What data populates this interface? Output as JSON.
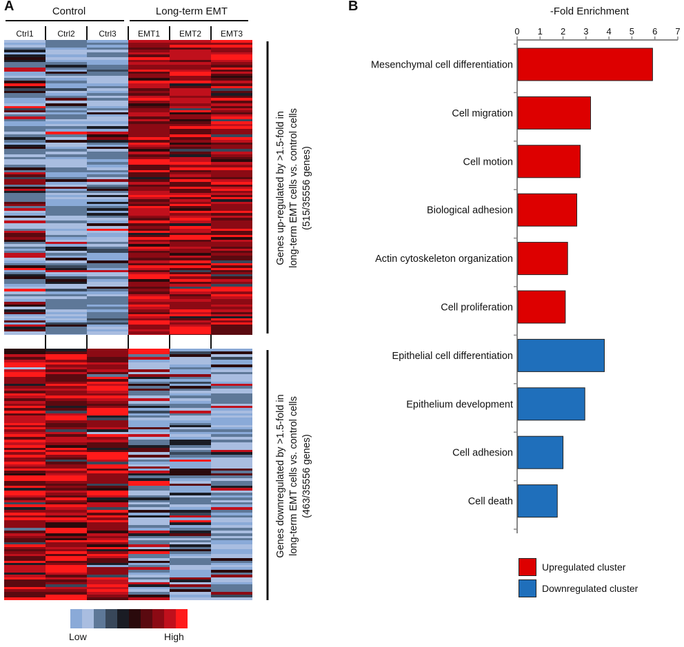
{
  "panel_a": {
    "letter": "A",
    "groups": [
      "Control",
      "Long-term EMT"
    ],
    "columns": [
      "Ctrl1",
      "Ctrl2",
      "Ctrl3",
      "EMT1",
      "EMT2",
      "EMT3"
    ],
    "upregulated_label": [
      "Genes up-regulated by >1.5-fold in",
      "long-term EMT cells vs. control cells",
      "(515/35556 genes)"
    ],
    "downregulated_label": [
      "Genes downregulated by >1.5-fold in",
      "long-term EMT cells vs. control cells",
      "(463/35556 genes)"
    ],
    "scale": {
      "low": "Low",
      "high": "High",
      "colors": [
        "#8aaad8",
        "#a9bde0",
        "#5e7898",
        "#38475a",
        "#1a1c24",
        "#2a0a0c",
        "#5a0a10",
        "#8c0a14",
        "#c0101c",
        "#ff1a1a"
      ]
    }
  },
  "chart_data": {
    "type": "bar",
    "orientation": "horizontal",
    "panel_letter": "B",
    "title": "-Fold Enrichment",
    "xlim": [
      0,
      7
    ],
    "ticks": [
      0,
      1,
      2,
      3,
      4,
      5,
      6,
      7
    ],
    "categories": [
      "Mesenchymal cell differentiation",
      "Cell migration",
      "Cell motion",
      "Biological adhesion",
      "Actin cytoskeleton organization",
      "Cell proliferation",
      "Epithelial cell differentiation",
      "Epithelium development",
      "Cell adhesion",
      "Cell death"
    ],
    "values": [
      5.9,
      3.2,
      2.75,
      2.6,
      2.2,
      2.1,
      3.8,
      2.95,
      2.0,
      1.75
    ],
    "clusters": [
      "up",
      "up",
      "up",
      "up",
      "up",
      "up",
      "down",
      "down",
      "down",
      "down"
    ],
    "legend": [
      {
        "key": "up",
        "label": "Upregulated cluster",
        "color": "#dd0000"
      },
      {
        "key": "down",
        "label": "Downregulated cluster",
        "color": "#1f6fbb"
      }
    ]
  }
}
